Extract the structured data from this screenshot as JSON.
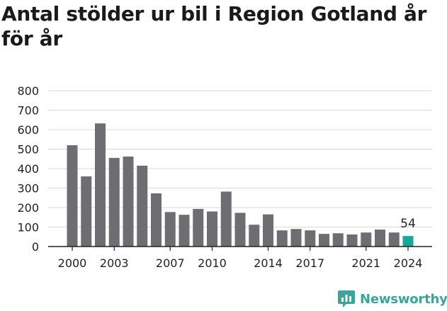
{
  "title": "Antal stölder ur bil i Region Gotland år för år",
  "brand": "Newsworthy",
  "colors": {
    "bar": "#6e6d72",
    "highlight": "#18a89a",
    "grid": "#d9d9d9",
    "axis": "#222222",
    "text": "#222222",
    "brand": "#3aa59a"
  },
  "chart_data": {
    "type": "bar",
    "title": "Antal stölder ur bil i Region Gotland år för år",
    "xlabel": "",
    "ylabel": "",
    "ylim": [
      0,
      800
    ],
    "yticks": [
      0,
      100,
      200,
      300,
      400,
      500,
      600,
      700,
      800
    ],
    "xtick_labels": [
      "2000",
      "2003",
      "2007",
      "2010",
      "2014",
      "2017",
      "2021",
      "2024"
    ],
    "grid": "horizontal",
    "highlight_category": "2024",
    "highlight_label": "54",
    "categories": [
      "2000",
      "2001",
      "2002",
      "2003",
      "2004",
      "2005",
      "2006",
      "2007",
      "2008",
      "2009",
      "2010",
      "2011",
      "2012",
      "2013",
      "2014",
      "2015",
      "2016",
      "2017",
      "2018",
      "2019",
      "2020",
      "2021",
      "2022",
      "2023",
      "2024"
    ],
    "values": [
      520,
      360,
      632,
      455,
      462,
      415,
      273,
      177,
      163,
      193,
      180,
      282,
      173,
      112,
      165,
      83,
      90,
      83,
      65,
      68,
      62,
      72,
      87,
      72,
      54
    ]
  }
}
